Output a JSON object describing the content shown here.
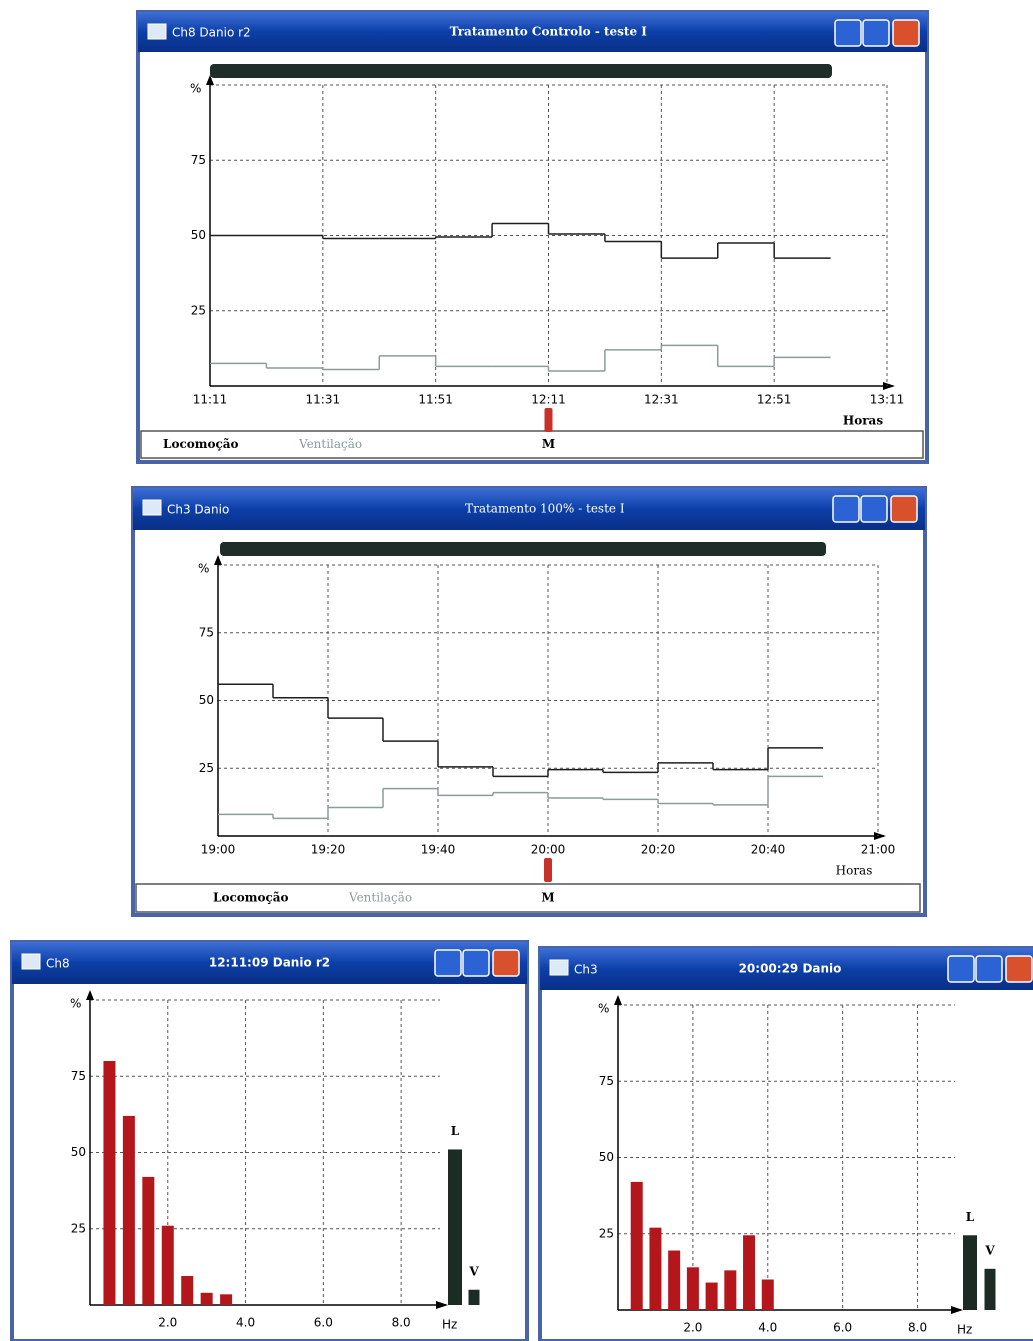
{
  "windows": [
    {
      "channel": "Ch8 Danio r2",
      "title": "Tratamento Controlo - teste I",
      "chart": {
        "type": "step",
        "ylabel": "%",
        "xlabel": "Horas",
        "ylim": [
          0,
          100
        ],
        "yticks": [
          25,
          50,
          75
        ],
        "xticks": [
          "11:11",
          "11:31",
          "11:51",
          "12:11",
          "12:31",
          "12:51",
          "13:11"
        ],
        "series": [
          {
            "name": "Locomoção",
            "color": "#1e1e1e",
            "values": [
              50,
              50,
              49,
              49,
              49.5,
              54,
              50.5,
              48,
              42.5,
              47.5,
              42.5
            ]
          },
          {
            "name": "Ventilação",
            "color": "#8c9c9c",
            "values": [
              7.5,
              6,
              5.5,
              10,
              6.5,
              6.5,
              5,
              12,
              13.5,
              6.5,
              9.5
            ]
          }
        ],
        "marker_label": "M"
      }
    },
    {
      "channel": "Ch3 Danio",
      "title": "Tratamento 100% - teste I",
      "chart": {
        "type": "step",
        "ylabel": "%",
        "xlabel": "Horas",
        "ylim": [
          0,
          100
        ],
        "yticks": [
          25,
          50,
          75
        ],
        "xticks": [
          "19:00",
          "19:20",
          "19:40",
          "20:00",
          "20:20",
          "20:40",
          "21:00"
        ],
        "series": [
          {
            "name": "Locomoção",
            "color": "#1e1e1e",
            "values": [
              56,
              51,
              43.5,
              35,
              25.5,
              22,
              24.5,
              23.5,
              27,
              24.5,
              32.5
            ]
          },
          {
            "name": "Ventilação",
            "color": "#8c9c9c",
            "values": [
              8,
              6.5,
              10.5,
              17.5,
              15,
              16,
              14,
              13.5,
              12,
              11.5,
              22
            ]
          }
        ],
        "marker_label": "M"
      }
    },
    {
      "channel": "Ch8",
      "title": "12:11:09 Danio r2",
      "chart": {
        "type": "bar",
        "ylabel": "%",
        "xlabel": "Hz",
        "ylim": [
          0,
          100
        ],
        "yticks": [
          25,
          50,
          75
        ],
        "xlim": [
          0,
          9
        ],
        "xticks": [
          {
            "value": 2,
            "label": "2.0"
          },
          {
            "value": 4,
            "label": "4.0"
          },
          {
            "value": 6,
            "label": "6.0"
          },
          {
            "value": 8,
            "label": "8.0"
          }
        ],
        "x": [
          0.5,
          1,
          1.5,
          2,
          2.5,
          3,
          3.5
        ],
        "values": [
          80,
          62,
          42,
          26,
          9.5,
          4,
          3.5
        ],
        "color": "#b3161b",
        "levels": [
          {
            "name": "L",
            "value": 51,
            "color": "#1d2b25"
          },
          {
            "name": "V",
            "value": 5,
            "color": "#1d2b25"
          }
        ]
      }
    },
    {
      "channel": "Ch3",
      "title": "20:00:29 Danio",
      "chart": {
        "type": "bar",
        "ylabel": "%",
        "xlabel": "Hz",
        "ylim": [
          0,
          100
        ],
        "yticks": [
          25,
          50,
          75
        ],
        "xlim": [
          0,
          9
        ],
        "xticks": [
          {
            "value": 2,
            "label": "2.0"
          },
          {
            "value": 4,
            "label": "4.0"
          },
          {
            "value": 6,
            "label": "6.0"
          },
          {
            "value": 8,
            "label": "8.0"
          }
        ],
        "x": [
          0.5,
          1,
          1.5,
          2,
          2.5,
          3,
          3.5,
          4
        ],
        "values": [
          42,
          27,
          19.5,
          14,
          9,
          13,
          24.5,
          10
        ],
        "color": "#b3161b",
        "levels": [
          {
            "name": "L",
            "value": 24.5,
            "color": "#1d2b25"
          },
          {
            "name": "V",
            "value": 13.5,
            "color": "#1d2b25"
          }
        ]
      }
    }
  ]
}
